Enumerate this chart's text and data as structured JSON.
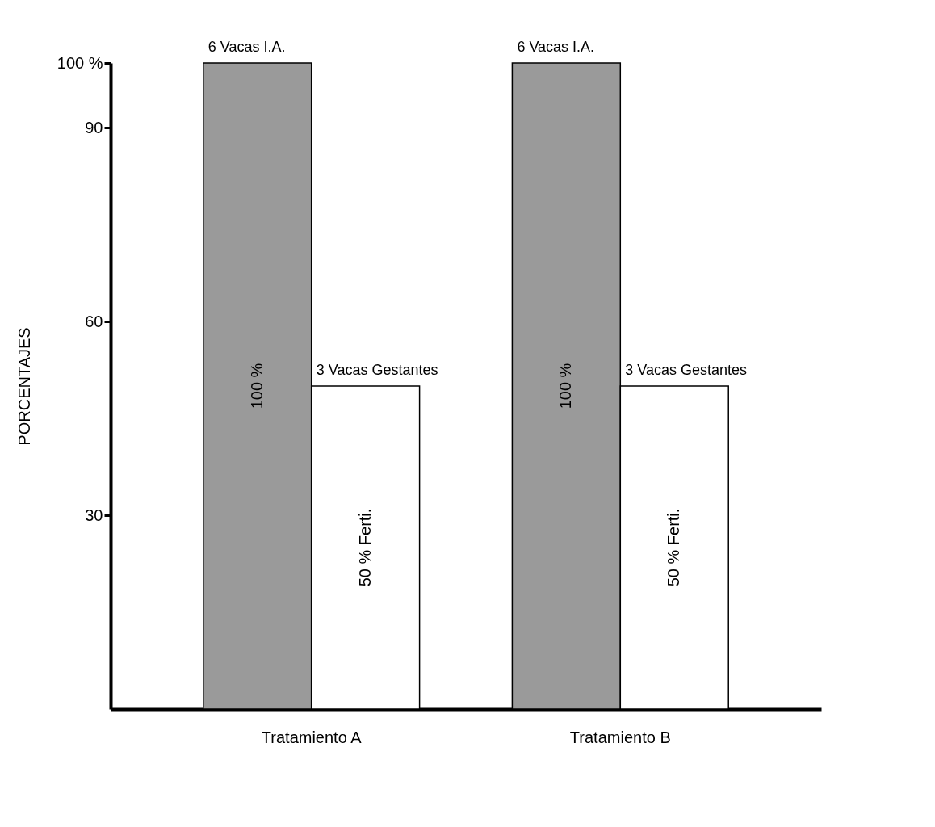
{
  "chart_data": {
    "type": "bar",
    "ylabel": "PORCENTAJES",
    "categories": [
      "Tratamiento  A",
      "Tratamiento  B"
    ],
    "series": [
      {
        "color": "#9a9a9a",
        "values": [
          100,
          100
        ],
        "value_labels": [
          "100 %",
          "100 %"
        ]
      },
      {
        "color": "#ffffff",
        "values": [
          50,
          50
        ],
        "value_labels": [
          "50 % Ferti.",
          "50 % Ferti."
        ]
      }
    ],
    "ylim": [
      0,
      100
    ],
    "yticks": [
      30,
      60,
      90,
      {
        "value": 100,
        "label": "100 %"
      }
    ],
    "grid": false,
    "legend": false,
    "annotations": [
      {
        "text": "6 Vacas I.A.",
        "x": "Tratamiento  A",
        "y": 100
      },
      {
        "text": "3 Vacas Gestantes",
        "x": "Tratamiento  A",
        "y": 50
      },
      {
        "text": "6 Vacas I.A.",
        "x": "Tratamiento  B",
        "y": 100
      },
      {
        "text": "3 Vacas Gestantes",
        "x": "Tratamiento  B",
        "y": 50
      }
    ]
  }
}
